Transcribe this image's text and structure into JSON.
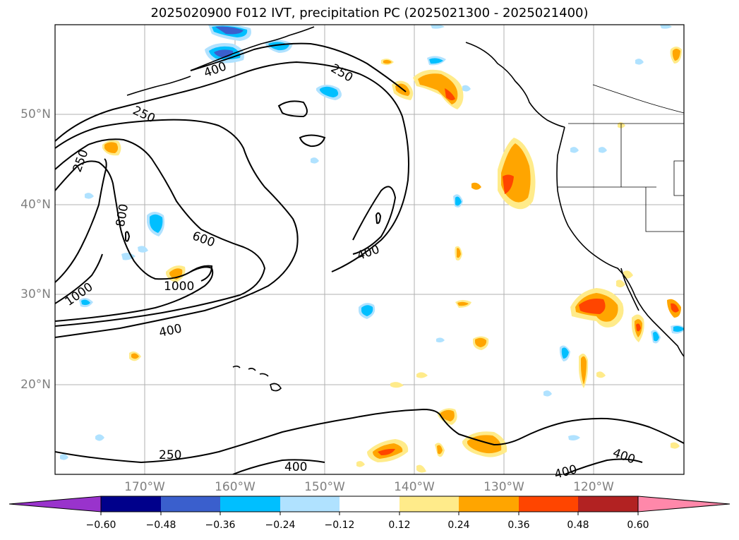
{
  "title": "2025020900 F012 IVT, precipitation PC (2025021300 - 2025021400)",
  "lat_labels": [
    "50°N",
    "40°N",
    "30°N",
    "20°N"
  ],
  "lon_labels": [
    "170°W",
    "160°W",
    "150°W",
    "140°W",
    "130°W",
    "120°W"
  ],
  "contour_labels": [
    "250",
    "250",
    "250",
    "400",
    "800",
    "600",
    "1000",
    "1000",
    "400",
    "400",
    "250",
    "400",
    "400",
    "400"
  ],
  "colorbar": {
    "ticks": [
      "−0.60",
      "−0.48",
      "−0.36",
      "−0.24",
      "−0.12",
      "0.12",
      "0.24",
      "0.36",
      "0.48",
      "0.60"
    ],
    "colors": {
      "under": "#9933cc",
      "c1": "#00008b",
      "c2": "#3a5fcd",
      "c3": "#00bfff",
      "c4": "#b0e2ff",
      "c5": "#ffffff",
      "c6": "#ffeb8a",
      "c7": "#ffa500",
      "c8": "#ff4500",
      "c9": "#b22222",
      "over": "#ff88aa"
    }
  }
}
